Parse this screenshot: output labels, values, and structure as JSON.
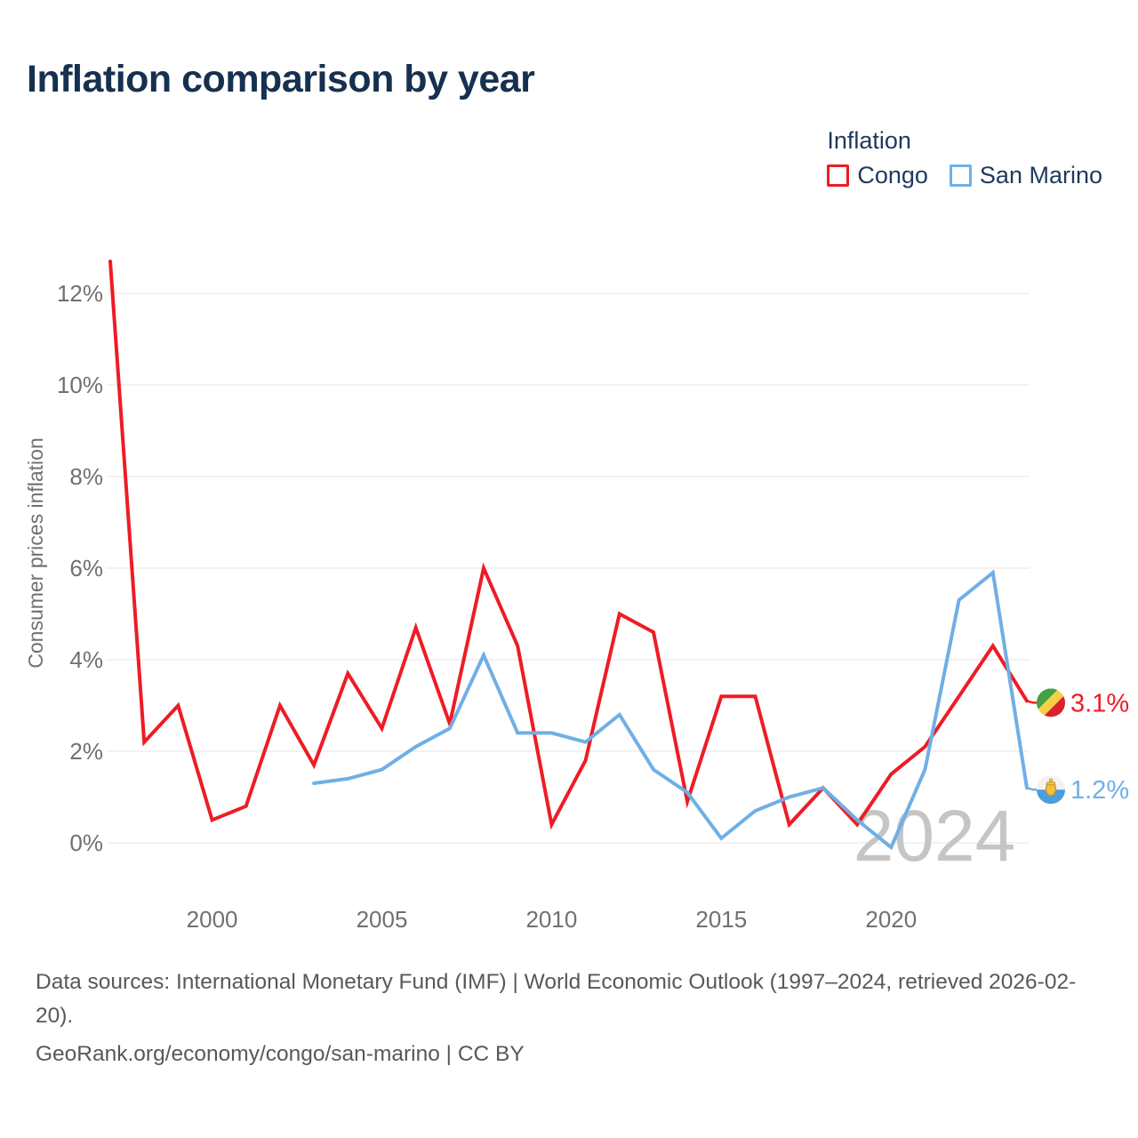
{
  "page": {
    "title": "Inflation comparison by year"
  },
  "legend": {
    "title": "Inflation",
    "items": [
      {
        "label": "Congo",
        "color": "#ee1c25"
      },
      {
        "label": "San Marino",
        "color": "#70afe5"
      }
    ]
  },
  "chart_data": {
    "type": "line",
    "title": "Inflation comparison by year",
    "xlabel": "",
    "ylabel": "Consumer prices inflation",
    "x": [
      1997,
      1998,
      1999,
      2000,
      2001,
      2002,
      2003,
      2004,
      2005,
      2006,
      2007,
      2008,
      2009,
      2010,
      2011,
      2012,
      2013,
      2014,
      2015,
      2016,
      2017,
      2018,
      2019,
      2020,
      2021,
      2022,
      2023,
      2024
    ],
    "xticks": [
      2000,
      2005,
      2010,
      2015,
      2020
    ],
    "yticks": [
      0,
      2,
      4,
      6,
      8,
      10,
      12
    ],
    "ytick_labels": [
      "0%",
      "2%",
      "4%",
      "6%",
      "8%",
      "10%",
      "12%"
    ],
    "ylim": [
      -0.5,
      13
    ],
    "grid": "horizontal",
    "legend_position": "top-right",
    "watermark": "2024",
    "series": [
      {
        "name": "Congo",
        "color": "#ee1c25",
        "icon": "congo-flag-icon",
        "end_label": "3.1%",
        "values": [
          12.7,
          2.2,
          3.0,
          0.5,
          0.8,
          3.0,
          1.7,
          3.7,
          2.5,
          4.7,
          2.6,
          6.0,
          4.3,
          0.4,
          1.8,
          5.0,
          4.6,
          0.9,
          3.2,
          3.2,
          0.4,
          1.2,
          0.4,
          1.5,
          2.1,
          3.2,
          4.3,
          3.1
        ]
      },
      {
        "name": "San Marino",
        "color": "#70afe5",
        "icon": "san-marino-flag-icon",
        "end_label": "1.2%",
        "values": [
          null,
          null,
          null,
          null,
          null,
          null,
          1.3,
          1.4,
          1.6,
          2.1,
          2.5,
          4.1,
          2.4,
          2.4,
          2.2,
          2.8,
          1.6,
          1.1,
          0.1,
          0.7,
          1.0,
          1.2,
          0.5,
          -0.1,
          1.6,
          5.3,
          5.9,
          1.2
        ]
      }
    ]
  },
  "footer": {
    "sources": "Data sources: International Monetary Fund (IMF) | World Economic Outlook (1997–2024, retrieved 2026-02-20).",
    "attribution": "GeoRank.org/economy/congo/san-marino | CC BY"
  }
}
